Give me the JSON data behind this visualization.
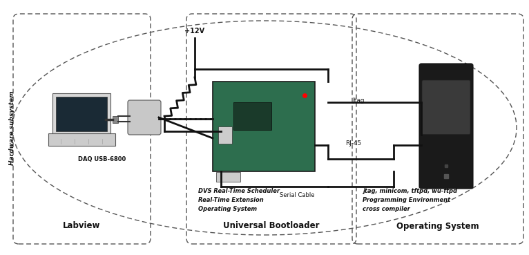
{
  "fig_width": 7.66,
  "fig_height": 3.69,
  "bg_color": "#ffffff",
  "hardware_label": "Hardware subsystem",
  "dashed_color": "#555555",
  "line_color": "#111111",
  "text_color": "#111111",
  "v12_label": "+12V",
  "jtag_label": "Jtag",
  "rj45_label": "RJ-45",
  "serial_label": "Serial Cable",
  "daq_label": "DAQ USB-6800",
  "dvs_lines": [
    "DVS Real-Time Scheduler",
    "Real-Time Extension",
    "Operating System"
  ],
  "os_lines": [
    "jtag, minicom, tftpd, wu-ftpd",
    "Programming Environment",
    "cross compiler"
  ],
  "panel_labels": [
    "Labview",
    "Universal Bootloader",
    "Operating System"
  ]
}
